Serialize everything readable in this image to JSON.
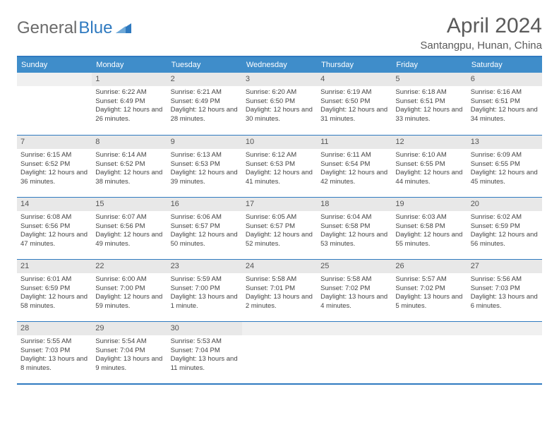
{
  "logo": {
    "text1": "General",
    "text2": "Blue"
  },
  "title": "April 2024",
  "location": "Santangpu, Hunan, China",
  "colors": {
    "header_bg": "#3f8dca",
    "border": "#2f7ac0",
    "daynum_bg": "#e8e8e8",
    "text": "#444444"
  },
  "daysOfWeek": [
    "Sunday",
    "Monday",
    "Tuesday",
    "Wednesday",
    "Thursday",
    "Friday",
    "Saturday"
  ],
  "weeks": [
    [
      {
        "n": "",
        "sr": "",
        "ss": "",
        "dl": ""
      },
      {
        "n": "1",
        "sr": "Sunrise: 6:22 AM",
        "ss": "Sunset: 6:49 PM",
        "dl": "Daylight: 12 hours and 26 minutes."
      },
      {
        "n": "2",
        "sr": "Sunrise: 6:21 AM",
        "ss": "Sunset: 6:49 PM",
        "dl": "Daylight: 12 hours and 28 minutes."
      },
      {
        "n": "3",
        "sr": "Sunrise: 6:20 AM",
        "ss": "Sunset: 6:50 PM",
        "dl": "Daylight: 12 hours and 30 minutes."
      },
      {
        "n": "4",
        "sr": "Sunrise: 6:19 AM",
        "ss": "Sunset: 6:50 PM",
        "dl": "Daylight: 12 hours and 31 minutes."
      },
      {
        "n": "5",
        "sr": "Sunrise: 6:18 AM",
        "ss": "Sunset: 6:51 PM",
        "dl": "Daylight: 12 hours and 33 minutes."
      },
      {
        "n": "6",
        "sr": "Sunrise: 6:16 AM",
        "ss": "Sunset: 6:51 PM",
        "dl": "Daylight: 12 hours and 34 minutes."
      }
    ],
    [
      {
        "n": "7",
        "sr": "Sunrise: 6:15 AM",
        "ss": "Sunset: 6:52 PM",
        "dl": "Daylight: 12 hours and 36 minutes."
      },
      {
        "n": "8",
        "sr": "Sunrise: 6:14 AM",
        "ss": "Sunset: 6:52 PM",
        "dl": "Daylight: 12 hours and 38 minutes."
      },
      {
        "n": "9",
        "sr": "Sunrise: 6:13 AM",
        "ss": "Sunset: 6:53 PM",
        "dl": "Daylight: 12 hours and 39 minutes."
      },
      {
        "n": "10",
        "sr": "Sunrise: 6:12 AM",
        "ss": "Sunset: 6:53 PM",
        "dl": "Daylight: 12 hours and 41 minutes."
      },
      {
        "n": "11",
        "sr": "Sunrise: 6:11 AM",
        "ss": "Sunset: 6:54 PM",
        "dl": "Daylight: 12 hours and 42 minutes."
      },
      {
        "n": "12",
        "sr": "Sunrise: 6:10 AM",
        "ss": "Sunset: 6:55 PM",
        "dl": "Daylight: 12 hours and 44 minutes."
      },
      {
        "n": "13",
        "sr": "Sunrise: 6:09 AM",
        "ss": "Sunset: 6:55 PM",
        "dl": "Daylight: 12 hours and 45 minutes."
      }
    ],
    [
      {
        "n": "14",
        "sr": "Sunrise: 6:08 AM",
        "ss": "Sunset: 6:56 PM",
        "dl": "Daylight: 12 hours and 47 minutes."
      },
      {
        "n": "15",
        "sr": "Sunrise: 6:07 AM",
        "ss": "Sunset: 6:56 PM",
        "dl": "Daylight: 12 hours and 49 minutes."
      },
      {
        "n": "16",
        "sr": "Sunrise: 6:06 AM",
        "ss": "Sunset: 6:57 PM",
        "dl": "Daylight: 12 hours and 50 minutes."
      },
      {
        "n": "17",
        "sr": "Sunrise: 6:05 AM",
        "ss": "Sunset: 6:57 PM",
        "dl": "Daylight: 12 hours and 52 minutes."
      },
      {
        "n": "18",
        "sr": "Sunrise: 6:04 AM",
        "ss": "Sunset: 6:58 PM",
        "dl": "Daylight: 12 hours and 53 minutes."
      },
      {
        "n": "19",
        "sr": "Sunrise: 6:03 AM",
        "ss": "Sunset: 6:58 PM",
        "dl": "Daylight: 12 hours and 55 minutes."
      },
      {
        "n": "20",
        "sr": "Sunrise: 6:02 AM",
        "ss": "Sunset: 6:59 PM",
        "dl": "Daylight: 12 hours and 56 minutes."
      }
    ],
    [
      {
        "n": "21",
        "sr": "Sunrise: 6:01 AM",
        "ss": "Sunset: 6:59 PM",
        "dl": "Daylight: 12 hours and 58 minutes."
      },
      {
        "n": "22",
        "sr": "Sunrise: 6:00 AM",
        "ss": "Sunset: 7:00 PM",
        "dl": "Daylight: 12 hours and 59 minutes."
      },
      {
        "n": "23",
        "sr": "Sunrise: 5:59 AM",
        "ss": "Sunset: 7:00 PM",
        "dl": "Daylight: 13 hours and 1 minute."
      },
      {
        "n": "24",
        "sr": "Sunrise: 5:58 AM",
        "ss": "Sunset: 7:01 PM",
        "dl": "Daylight: 13 hours and 2 minutes."
      },
      {
        "n": "25",
        "sr": "Sunrise: 5:58 AM",
        "ss": "Sunset: 7:02 PM",
        "dl": "Daylight: 13 hours and 4 minutes."
      },
      {
        "n": "26",
        "sr": "Sunrise: 5:57 AM",
        "ss": "Sunset: 7:02 PM",
        "dl": "Daylight: 13 hours and 5 minutes."
      },
      {
        "n": "27",
        "sr": "Sunrise: 5:56 AM",
        "ss": "Sunset: 7:03 PM",
        "dl": "Daylight: 13 hours and 6 minutes."
      }
    ],
    [
      {
        "n": "28",
        "sr": "Sunrise: 5:55 AM",
        "ss": "Sunset: 7:03 PM",
        "dl": "Daylight: 13 hours and 8 minutes."
      },
      {
        "n": "29",
        "sr": "Sunrise: 5:54 AM",
        "ss": "Sunset: 7:04 PM",
        "dl": "Daylight: 13 hours and 9 minutes."
      },
      {
        "n": "30",
        "sr": "Sunrise: 5:53 AM",
        "ss": "Sunset: 7:04 PM",
        "dl": "Daylight: 13 hours and 11 minutes."
      },
      {
        "n": "",
        "sr": "",
        "ss": "",
        "dl": ""
      },
      {
        "n": "",
        "sr": "",
        "ss": "",
        "dl": ""
      },
      {
        "n": "",
        "sr": "",
        "ss": "",
        "dl": ""
      },
      {
        "n": "",
        "sr": "",
        "ss": "",
        "dl": ""
      }
    ]
  ]
}
